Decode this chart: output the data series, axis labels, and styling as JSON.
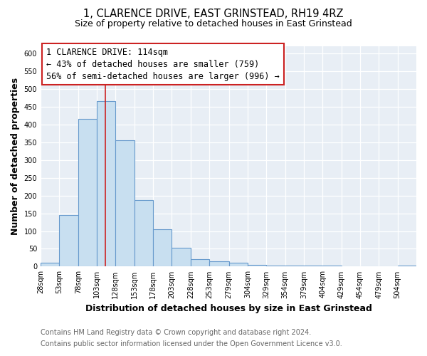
{
  "title": "1, CLARENCE DRIVE, EAST GRINSTEAD, RH19 4RZ",
  "subtitle": "Size of property relative to detached houses in East Grinstead",
  "xlabel": "Distribution of detached houses by size in East Grinstead",
  "ylabel": "Number of detached properties",
  "footer_line1": "Contains HM Land Registry data © Crown copyright and database right 2024.",
  "footer_line2": "Contains public sector information licensed under the Open Government Licence v3.0.",
  "bin_edges": [
    28,
    53,
    78,
    103,
    128,
    153,
    178,
    203,
    228,
    253,
    279,
    304,
    329,
    354,
    379,
    404,
    429,
    454,
    479,
    504,
    529
  ],
  "bin_counts": [
    10,
    145,
    415,
    465,
    355,
    188,
    105,
    53,
    20,
    15,
    10,
    5,
    3,
    3,
    2,
    2,
    1,
    0,
    0,
    2
  ],
  "bar_facecolor": "#c8dff0",
  "bar_edgecolor": "#6699cc",
  "bar_linewidth": 0.8,
  "vline_x": 114,
  "vline_color": "#cc2222",
  "vline_linewidth": 1.2,
  "annotation_title": "1 CLARENCE DRIVE: 114sqm",
  "annotation_line1": "← 43% of detached houses are smaller (759)",
  "annotation_line2": "56% of semi-detached houses are larger (996) →",
  "ylim": [
    0,
    620
  ],
  "yticks": [
    0,
    50,
    100,
    150,
    200,
    250,
    300,
    350,
    400,
    450,
    500,
    550,
    600
  ],
  "figure_facecolor": "#ffffff",
  "plot_facecolor": "#e8eef5",
  "title_fontsize": 10.5,
  "subtitle_fontsize": 9,
  "tick_label_fontsize": 7,
  "axis_label_fontsize": 9,
  "annotation_fontsize": 8.5,
  "footer_fontsize": 7,
  "grid_color": "#ffffff",
  "grid_linewidth": 0.9
}
